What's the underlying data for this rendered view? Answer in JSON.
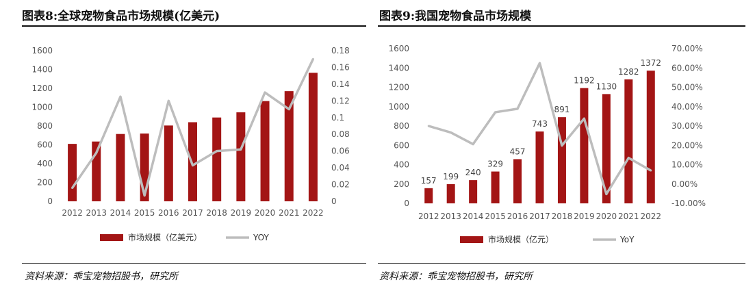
{
  "colors": {
    "bar": "#a31515",
    "line": "#bdbdbd"
  },
  "left": {
    "title": "图表8:全球宠物食品市场规模(亿美元)",
    "source": "资料来源：乖宝宠物招股书，研究所",
    "chart_data": {
      "type": "bar",
      "categories": [
        "2012",
        "2013",
        "2014",
        "2015",
        "2016",
        "2017",
        "2018",
        "2019",
        "2020",
        "2021",
        "2022"
      ],
      "series": [
        {
          "name": "市场规模（亿美元）",
          "values": [
            610,
            635,
            715,
            720,
            805,
            840,
            890,
            945,
            1065,
            1170,
            1365
          ]
        },
        {
          "name": "YOY",
          "values": [
            0.016,
            0.058,
            0.125,
            0.007,
            0.12,
            0.043,
            0.06,
            0.062,
            0.13,
            0.11,
            0.17
          ]
        }
      ],
      "y_left": {
        "ylim": [
          0,
          1600
        ],
        "ticks": [
          "0",
          "200",
          "400",
          "600",
          "800",
          "1000",
          "1200",
          "1400",
          "1600"
        ]
      },
      "y_right": {
        "ylim": [
          0,
          0.18
        ],
        "ticks": [
          "0",
          "0.02",
          "0.04",
          "0.06",
          "0.08",
          "0.1",
          "0.12",
          "0.14",
          "0.16",
          "0.18"
        ]
      },
      "legend": {
        "bar": "市场规模（亿美元）",
        "line": "YOY",
        "position": "bottom"
      }
    }
  },
  "right": {
    "title": "图表9:我国宠物食品市场规模",
    "source": "资料来源：乖宝宠物招股书，研究所",
    "chart_data": {
      "type": "bar",
      "categories": [
        "2012",
        "2013",
        "2014",
        "2015",
        "2016",
        "2017",
        "2018",
        "2019",
        "2020",
        "2021",
        "2022"
      ],
      "series": [
        {
          "name": "市场规模（亿元）",
          "values": [
            157,
            199,
            240,
            329,
            457,
            743,
            891,
            1192,
            1130,
            1282,
            1372
          ]
        },
        {
          "name": "YoY",
          "values": [
            0.3,
            0.266,
            0.206,
            0.371,
            0.389,
            0.625,
            0.199,
            0.338,
            -0.052,
            0.135,
            0.07
          ]
        }
      ],
      "data_labels": [
        "157",
        "199",
        "240",
        "329",
        "457",
        "743",
        "891",
        "1192",
        "1130",
        "1282",
        "1372"
      ],
      "y_left": {
        "ylim": [
          0,
          1600
        ],
        "ticks": [
          "0",
          "200",
          "400",
          "600",
          "800",
          "1000",
          "1200",
          "1400",
          "1600"
        ]
      },
      "y_right": {
        "ylim": [
          -0.1,
          0.7
        ],
        "ticks": [
          "-10.00%",
          "0.00%",
          "10.00%",
          "20.00%",
          "30.00%",
          "40.00%",
          "50.00%",
          "60.00%",
          "70.00%"
        ]
      },
      "legend": {
        "bar": "市场规模（亿元）",
        "line": "YoY",
        "position": "bottom"
      }
    }
  }
}
